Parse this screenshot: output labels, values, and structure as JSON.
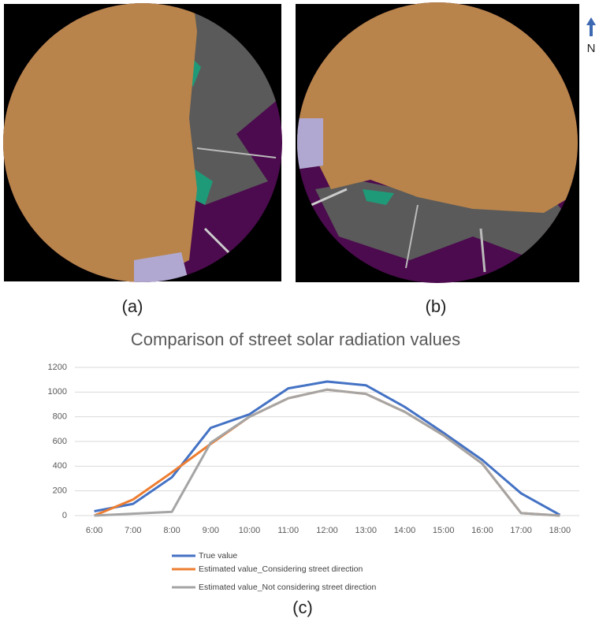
{
  "panels": {
    "a": "(a)",
    "b": "(b)",
    "c": "(c)"
  },
  "north": "N",
  "chart_data": {
    "type": "line",
    "title": "Comparison of street solar radiation values",
    "categories": [
      "6:00",
      "7:00",
      "8:00",
      "9:00",
      "10:00",
      "11:00",
      "12:00",
      "13:00",
      "14:00",
      "15:00",
      "16:00",
      "17:00",
      "18:00"
    ],
    "series": [
      {
        "name": "True value",
        "color": "#4472c4",
        "values": [
          35,
          95,
          310,
          710,
          820,
          1030,
          1085,
          1055,
          880,
          670,
          450,
          180,
          5
        ]
      },
      {
        "name": "Estimated value_Considering street direction",
        "color": "#ed7d31",
        "values": [
          0,
          130,
          350,
          580,
          800,
          950,
          1020,
          985,
          840,
          650,
          420,
          20,
          0
        ]
      },
      {
        "name": "Estimated value_Not considering street direction",
        "color": "#a5a5a5",
        "values": [
          0,
          15,
          30,
          590,
          800,
          950,
          1020,
          985,
          840,
          650,
          420,
          20,
          0
        ]
      }
    ],
    "ylim": [
      0,
      1200
    ],
    "yticks": [
      0,
      200,
      400,
      600,
      800,
      1000,
      1200
    ],
    "grid": true,
    "legend": "bottom"
  }
}
